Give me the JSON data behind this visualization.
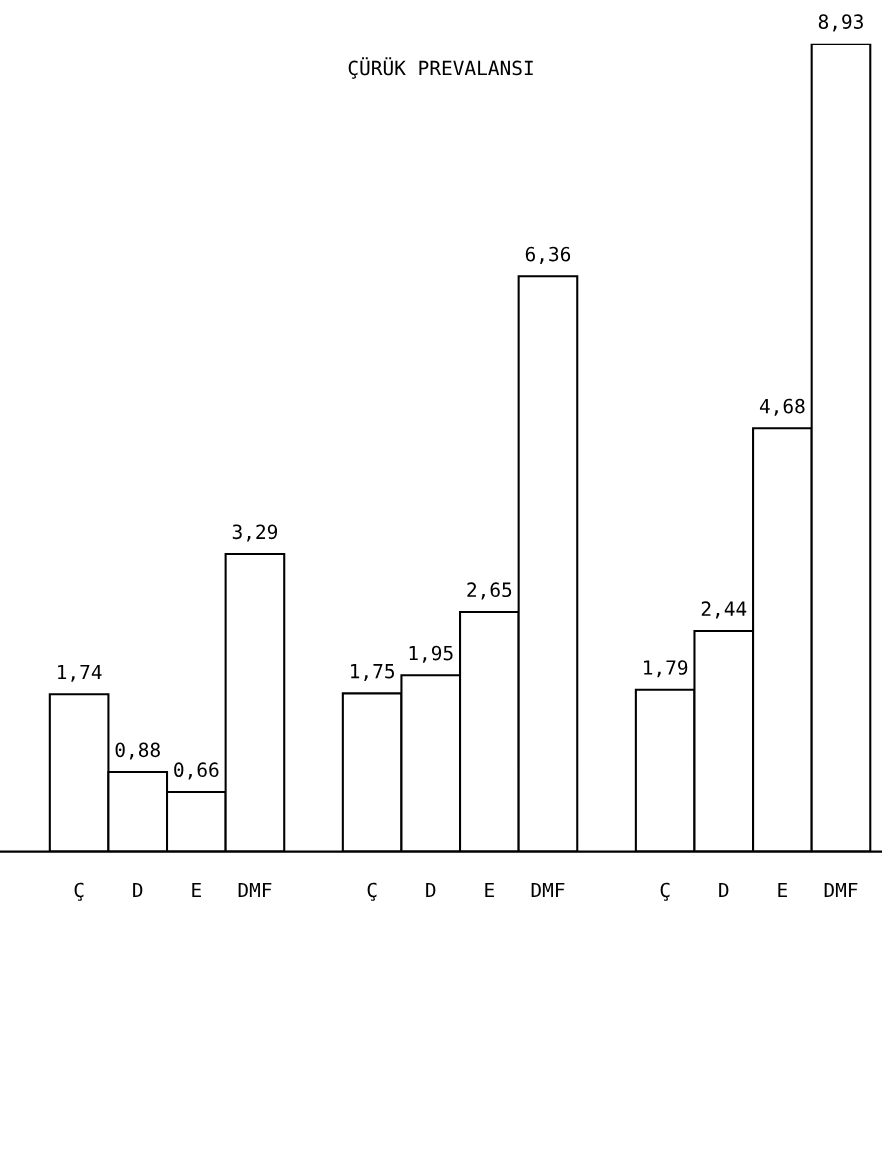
{
  "chart_data": {
    "type": "bar",
    "title": "ÇÜRÜK PREVALANSI",
    "categories": [
      "Ç",
      "D",
      "E",
      "DMF",
      null,
      "Ç",
      "D",
      "E",
      "DMF",
      null,
      "Ç",
      "D",
      "E",
      "DMF"
    ],
    "values": [
      1.74,
      0.88,
      0.66,
      3.29,
      null,
      1.75,
      1.95,
      2.65,
      6.36,
      null,
      1.79,
      2.44,
      4.68,
      8.93
    ],
    "value_labels": [
      "1,74",
      "0,88",
      "0,66",
      "3,29",
      null,
      "1,75",
      "1,95",
      "2,65",
      "6,36",
      null,
      "1,79",
      "2,44",
      "4,68",
      "8,93"
    ],
    "color": "#ffffff",
    "grid": false,
    "legend": false
  }
}
